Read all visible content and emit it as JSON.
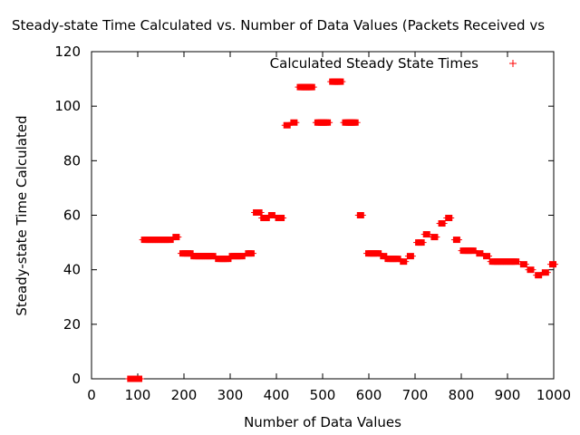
{
  "chart_data": {
    "type": "scatter",
    "title": "Steady-state Time Calculated vs. Number of Data Values (Packets Received vs",
    "xlabel": "Number of Data Values",
    "ylabel": "Steady-state Time Calculated",
    "xlim": [
      0,
      1000
    ],
    "ylim": [
      0,
      120
    ],
    "xticks": [
      0,
      100,
      200,
      300,
      400,
      500,
      600,
      700,
      800,
      900,
      1000
    ],
    "yticks": [
      0,
      20,
      40,
      60,
      80,
      100,
      120
    ],
    "grid": false,
    "legend_position": "top-right",
    "series": [
      {
        "name": "Calculated Steady State Times",
        "color": "#ff0000",
        "marker": "plus",
        "points": [
          [
            85,
            0
          ],
          [
            88,
            0
          ],
          [
            90,
            0
          ],
          [
            92,
            0
          ],
          [
            94,
            0
          ],
          [
            96,
            0
          ],
          [
            98,
            0
          ],
          [
            100,
            0
          ],
          [
            102,
            0
          ],
          [
            115,
            51
          ],
          [
            120,
            51
          ],
          [
            125,
            51
          ],
          [
            130,
            51
          ],
          [
            135,
            51
          ],
          [
            140,
            51
          ],
          [
            145,
            51
          ],
          [
            150,
            51
          ],
          [
            155,
            51
          ],
          [
            160,
            51
          ],
          [
            165,
            51
          ],
          [
            170,
            51
          ],
          [
            183,
            52
          ],
          [
            198,
            46
          ],
          [
            203,
            46
          ],
          [
            208,
            46
          ],
          [
            213,
            46
          ],
          [
            222,
            45
          ],
          [
            227,
            45
          ],
          [
            232,
            45
          ],
          [
            237,
            45
          ],
          [
            242,
            45
          ],
          [
            247,
            45
          ],
          [
            252,
            45
          ],
          [
            257,
            45
          ],
          [
            262,
            45
          ],
          [
            275,
            44
          ],
          [
            280,
            44
          ],
          [
            285,
            44
          ],
          [
            290,
            44
          ],
          [
            295,
            44
          ],
          [
            305,
            45
          ],
          [
            310,
            45
          ],
          [
            315,
            45
          ],
          [
            320,
            45
          ],
          [
            325,
            45
          ],
          [
            340,
            46
          ],
          [
            345,
            46
          ],
          [
            357,
            61
          ],
          [
            362,
            61
          ],
          [
            373,
            59
          ],
          [
            378,
            59
          ],
          [
            390,
            60
          ],
          [
            405,
            59
          ],
          [
            410,
            59
          ],
          [
            423,
            93
          ],
          [
            438,
            94
          ],
          [
            452,
            107
          ],
          [
            456,
            107
          ],
          [
            460,
            107
          ],
          [
            464,
            107
          ],
          [
            468,
            107
          ],
          [
            472,
            107
          ],
          [
            476,
            107
          ],
          [
            490,
            94
          ],
          [
            494,
            94
          ],
          [
            498,
            94
          ],
          [
            502,
            94
          ],
          [
            506,
            94
          ],
          [
            510,
            94
          ],
          [
            522,
            109
          ],
          [
            526,
            109
          ],
          [
            530,
            109
          ],
          [
            534,
            109
          ],
          [
            538,
            109
          ],
          [
            550,
            94
          ],
          [
            554,
            94
          ],
          [
            558,
            94
          ],
          [
            562,
            94
          ],
          [
            566,
            94
          ],
          [
            570,
            94
          ],
          [
            582,
            60
          ],
          [
            600,
            46
          ],
          [
            605,
            46
          ],
          [
            610,
            46
          ],
          [
            615,
            46
          ],
          [
            620,
            46
          ],
          [
            632,
            45
          ],
          [
            642,
            44
          ],
          [
            647,
            44
          ],
          [
            652,
            44
          ],
          [
            657,
            44
          ],
          [
            662,
            44
          ],
          [
            675,
            43
          ],
          [
            690,
            45
          ],
          [
            708,
            50
          ],
          [
            713,
            50
          ],
          [
            725,
            53
          ],
          [
            742,
            52
          ],
          [
            758,
            57
          ],
          [
            773,
            59
          ],
          [
            790,
            51
          ],
          [
            805,
            47
          ],
          [
            810,
            47
          ],
          [
            815,
            47
          ],
          [
            820,
            47
          ],
          [
            825,
            47
          ],
          [
            840,
            46
          ],
          [
            855,
            45
          ],
          [
            868,
            43
          ],
          [
            873,
            43
          ],
          [
            878,
            43
          ],
          [
            883,
            43
          ],
          [
            888,
            43
          ],
          [
            893,
            43
          ],
          [
            898,
            43
          ],
          [
            903,
            43
          ],
          [
            908,
            43
          ],
          [
            913,
            43
          ],
          [
            918,
            43
          ],
          [
            935,
            42
          ],
          [
            950,
            40
          ],
          [
            967,
            38
          ],
          [
            982,
            39
          ],
          [
            998,
            42
          ]
        ]
      }
    ]
  }
}
